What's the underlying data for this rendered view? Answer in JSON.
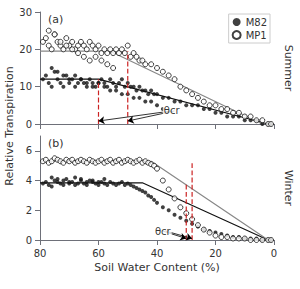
{
  "chart_data": [
    {
      "type": "scatter",
      "title": "(a)",
      "subtitle": "Summer",
      "ylabel": "Relative Transpiration",
      "xlim": [
        80,
        0
      ],
      "xticks": [
        80,
        60,
        40,
        20,
        0
      ],
      "ylim": [
        0,
        30
      ],
      "yticks": [
        0,
        10,
        20,
        30
      ],
      "grid": false,
      "legend": "upper right",
      "tick_labels": "y",
      "series": [
        {
          "name": "M82",
          "type": "scatter",
          "marker": "filled_circle",
          "color": "#111111",
          "x": [
            79,
            78,
            77,
            76,
            75,
            74,
            73,
            72,
            71,
            70,
            69,
            68,
            67,
            66,
            65,
            64,
            63,
            62,
            61,
            60,
            59,
            58,
            57,
            56,
            55,
            54,
            53,
            52,
            51,
            50,
            49,
            48,
            47,
            46,
            45,
            44,
            43,
            42,
            41,
            40,
            38,
            36,
            34,
            32,
            30,
            28,
            26,
            24,
            22,
            20,
            18,
            16,
            14,
            12,
            10,
            8,
            6,
            4,
            2,
            1,
            76,
            74,
            72,
            70,
            68,
            66,
            64,
            62,
            60,
            58,
            56,
            54,
            52,
            50,
            48,
            46,
            44,
            42,
            40,
            38
          ],
          "values": [
            12,
            13,
            11,
            10,
            14,
            12,
            11,
            10,
            13,
            11,
            12,
            10,
            11,
            12,
            11,
            10,
            12,
            11,
            10,
            11,
            12,
            11,
            10,
            12,
            11,
            10,
            11,
            12,
            10,
            11,
            10,
            10,
            9,
            10,
            9,
            9,
            8,
            9,
            8,
            8,
            7,
            7,
            6,
            6,
            5,
            5,
            5,
            4,
            4,
            3,
            3,
            2,
            2,
            2,
            1,
            1,
            1,
            0,
            0,
            0,
            15,
            14,
            13,
            12,
            13,
            12,
            11,
            10,
            11,
            10,
            9,
            9,
            8,
            8,
            7,
            7,
            6,
            6,
            5,
            4
          ]
        },
        {
          "name": "MP1",
          "type": "scatter",
          "marker": "open_circle",
          "color": "#111111",
          "x": [
            79,
            78,
            77,
            76,
            75,
            74,
            73,
            72,
            71,
            70,
            69,
            68,
            67,
            66,
            65,
            64,
            63,
            62,
            61,
            60,
            59,
            58,
            57,
            56,
            55,
            54,
            53,
            52,
            51,
            50,
            49,
            48,
            47,
            46,
            45,
            44,
            42,
            40,
            38,
            36,
            34,
            32,
            30,
            28,
            26,
            24,
            22,
            20,
            18,
            16,
            14,
            12,
            10,
            8,
            6,
            4,
            2,
            1,
            77,
            75,
            73,
            71,
            69,
            67,
            65,
            63,
            61,
            59,
            57,
            55
          ],
          "values": [
            22,
            23,
            21,
            20,
            24,
            22,
            21,
            20,
            23,
            21,
            22,
            20,
            21,
            22,
            21,
            20,
            22,
            21,
            20,
            21,
            19,
            20,
            19,
            20,
            19,
            20,
            19,
            20,
            19,
            21,
            18,
            19,
            18,
            17,
            17,
            16,
            16,
            15,
            14,
            13,
            12,
            10,
            9,
            8,
            7,
            6,
            5,
            5,
            4,
            4,
            3,
            3,
            2,
            2,
            1,
            1,
            0,
            0,
            25,
            24,
            22,
            21,
            20,
            19,
            18,
            17,
            18,
            17,
            16,
            15
          ]
        },
        {
          "type": "line",
          "line_style": "solid",
          "color": "#111111",
          "x": [
            80,
            60,
            2
          ],
          "values": [
            12,
            12,
            0
          ]
        },
        {
          "type": "line",
          "line_style": "solid",
          "color": "#888888",
          "x": [
            80,
            56,
            4
          ],
          "values": [
            19.5,
            19.5,
            0
          ]
        },
        {
          "type": "line",
          "line_style": "dashed",
          "color": "#cc2222",
          "x": [
            60,
            60
          ],
          "values": [
            0,
            12
          ]
        },
        {
          "type": "line",
          "line_style": "dashed",
          "color": "#cc2222",
          "x": [
            50,
            50
          ],
          "values": [
            0,
            19.5
          ]
        }
      ],
      "annotations": [
        {
          "text": "θcr",
          "x": 35,
          "y": 3.5,
          "arrows": [
            {
              "from": [
                35,
                3.5
              ],
              "to": [
                60,
                0.8
              ]
            },
            {
              "from": [
                34,
                3.5
              ],
              "to": [
                50,
                0.8
              ]
            }
          ]
        }
      ]
    },
    {
      "type": "scatter",
      "title": "(b)",
      "subtitle": "Winter",
      "xlabel": "Soil Water Content (%)",
      "xlim": [
        80,
        0
      ],
      "xticks": [
        80,
        60,
        40,
        20,
        0
      ],
      "ylim": [
        0,
        7
      ],
      "yticks": [
        0,
        2,
        4,
        6
      ],
      "grid": false,
      "series": [
        {
          "name": "M82",
          "type": "scatter",
          "marker": "filled_circle",
          "color": "#111111",
          "x": [
            79,
            78,
            77,
            76,
            75,
            74,
            73,
            72,
            71,
            70,
            69,
            68,
            67,
            66,
            65,
            64,
            63,
            62,
            61,
            60,
            59,
            58,
            57,
            56,
            55,
            54,
            53,
            52,
            51,
            50,
            49,
            48,
            47,
            46,
            45,
            44,
            43,
            42,
            41,
            40,
            38,
            36,
            34,
            32,
            30,
            28,
            26,
            24,
            22,
            20,
            18,
            16,
            14,
            12,
            10,
            8,
            6,
            4,
            2,
            1,
            76,
            74,
            72,
            70,
            68,
            66,
            64,
            62,
            60,
            58
          ],
          "values": [
            3.8,
            3.9,
            3.7,
            3.6,
            4.0,
            3.9,
            3.8,
            3.7,
            4.1,
            3.8,
            3.9,
            3.7,
            3.8,
            4.0,
            3.8,
            3.7,
            4.0,
            3.9,
            3.8,
            3.7,
            3.9,
            3.8,
            3.7,
            3.9,
            3.8,
            3.7,
            3.8,
            3.9,
            3.7,
            3.8,
            3.7,
            3.6,
            3.5,
            3.4,
            3.3,
            3.2,
            3.0,
            2.9,
            2.7,
            2.5,
            2.2,
            2.0,
            1.7,
            1.5,
            1.3,
            1.1,
            0.9,
            0.7,
            0.6,
            0.5,
            0.4,
            0.3,
            0.2,
            0.2,
            0.1,
            0.1,
            0.1,
            0.0,
            0.0,
            0.0,
            4.2,
            4.1,
            4.0,
            3.9,
            4.2,
            4.1,
            3.9,
            4.0,
            3.9,
            4.1
          ]
        },
        {
          "name": "MP1",
          "type": "scatter",
          "marker": "open_circle",
          "color": "#111111",
          "x": [
            79,
            78,
            77,
            76,
            75,
            74,
            73,
            72,
            71,
            70,
            69,
            68,
            67,
            66,
            65,
            64,
            63,
            62,
            61,
            60,
            59,
            58,
            57,
            56,
            55,
            54,
            53,
            52,
            51,
            50,
            49,
            48,
            47,
            46,
            45,
            44,
            43,
            42,
            41,
            40,
            38,
            36,
            34,
            32,
            30,
            28,
            26,
            24,
            22,
            20,
            18,
            16,
            14,
            12,
            10,
            8,
            6,
            4,
            2,
            1
          ],
          "values": [
            5.3,
            5.4,
            5.2,
            5.3,
            5.5,
            5.4,
            5.3,
            5.2,
            5.4,
            5.3,
            5.4,
            5.2,
            5.3,
            5.4,
            5.3,
            5.2,
            5.4,
            5.3,
            5.2,
            5.3,
            5.4,
            5.2,
            5.3,
            5.4,
            5.2,
            5.3,
            5.4,
            5.2,
            5.3,
            5.4,
            5.3,
            5.2,
            5.3,
            5.4,
            5.2,
            5.3,
            5.2,
            5.1,
            5.0,
            4.8,
            4.0,
            3.4,
            2.8,
            2.2,
            1.8,
            1.4,
            1.0,
            0.7,
            0.5,
            0.3,
            0.2,
            0.2,
            0.1,
            0.1,
            0.1,
            0.0,
            0.0,
            0.0,
            0.0,
            0.0
          ]
        },
        {
          "type": "line",
          "line_style": "solid",
          "color": "#111111",
          "x": [
            80,
            45,
            2
          ],
          "values": [
            3.85,
            3.85,
            0
          ]
        },
        {
          "type": "line",
          "line_style": "solid",
          "color": "#888888",
          "x": [
            80,
            42,
            2
          ],
          "values": [
            5.3,
            5.3,
            0
          ]
        },
        {
          "type": "line",
          "line_style": "dashed",
          "color": "#cc2222",
          "x": [
            30,
            30
          ],
          "values": [
            0,
            3.85
          ]
        },
        {
          "type": "line",
          "line_style": "dashed",
          "color": "#cc2222",
          "x": [
            28,
            28
          ],
          "values": [
            0,
            5.3
          ]
        }
      ],
      "annotations": [
        {
          "text": "θcr",
          "x": 38,
          "y": 0.6,
          "arrows": [
            {
              "from": [
                38,
                0.6
              ],
              "to": [
                30,
                0.1
              ]
            },
            {
              "from": [
                37,
                0.6
              ],
              "to": [
                28,
                0.1
              ]
            }
          ]
        }
      ]
    }
  ]
}
